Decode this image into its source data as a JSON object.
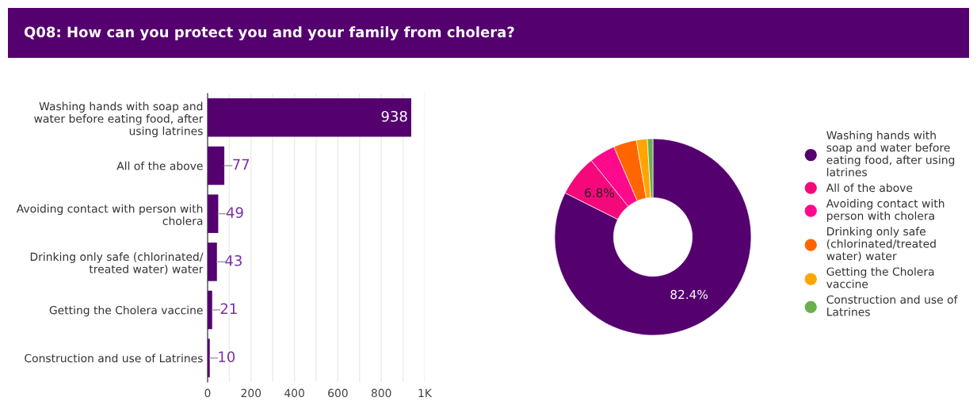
{
  "chart_data": [
    {
      "type": "bar",
      "title": "Q08: How can you protect you and your family from cholera?",
      "orientation": "horizontal",
      "categories": [
        "Washing hands with soap and\nwater before eating food, after\nusing latrines",
        "All of the above",
        "Avoiding contact with person with\ncholera",
        "Drinking only safe (chlorinated/\ntreated water) water",
        "Getting the Cholera vaccine",
        "Construction and use of Latrines"
      ],
      "values": [
        938,
        77,
        49,
        43,
        21,
        10
      ],
      "color": "#55006f",
      "data_labels": true,
      "grid": "x",
      "xlim": [
        0,
        1000
      ],
      "xticks": [
        0,
        {
          "value": 100,
          "label": null
        },
        200,
        {
          "value": 300,
          "label": null
        },
        400,
        {
          "value": 500,
          "label": null
        },
        600,
        {
          "value": 700,
          "label": null
        },
        800,
        {
          "value": 900,
          "label": null
        },
        {
          "value": 1000,
          "label": "1K"
        }
      ]
    },
    {
      "type": "donut",
      "legend": "right",
      "categories": [
        "Washing hands with\nsoap and water before\neating food, after using\nlatrines",
        "All of the above",
        "Avoiding contact with\nperson with cholera",
        "Drinking only safe\n(chlorinated/treated\nwater) water",
        "Getting the Cholera\nvaccine",
        "Construction and use of\nLatrines"
      ],
      "values": [
        82.4,
        6.8,
        4.3,
        3.8,
        1.8,
        0.9
      ],
      "colors": [
        "#55006f",
        "#f5097a",
        "#ff0a8c",
        "#ff6600",
        "#ffa500",
        "#6ab04c"
      ],
      "value_labels": [
        "82.4%",
        "6.8%",
        null,
        null,
        null,
        null
      ]
    }
  ]
}
